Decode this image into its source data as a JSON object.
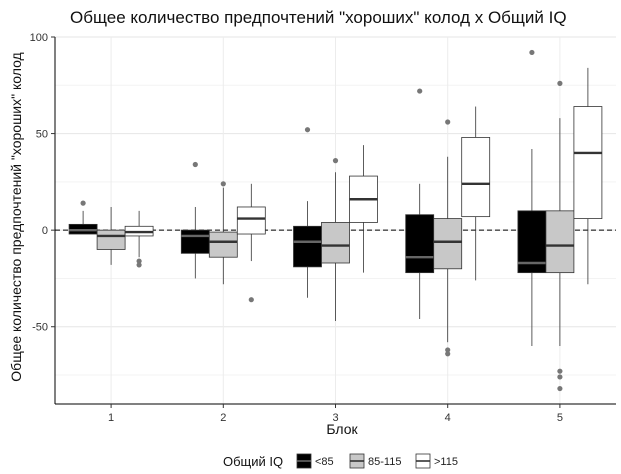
{
  "chart_data": {
    "type": "boxplot",
    "title": "Общее количество предпочтений \"хороших\" колод х Общий IQ",
    "xlabel": "Блок",
    "ylabel": "Общее количество предпочтений \"хороших\" колод",
    "categories": [
      "1",
      "2",
      "3",
      "4",
      "5"
    ],
    "ylim": [
      -90,
      100
    ],
    "yticks": [
      -50,
      0,
      50,
      100
    ],
    "reference_line": {
      "y": 0,
      "style": "dashed"
    },
    "grid": true,
    "legend": {
      "title": "Общий IQ",
      "placement": "bottom",
      "entries": [
        "<85",
        "85-115",
        ">115"
      ]
    },
    "series": [
      {
        "name": "<85",
        "color": "#000000",
        "median_color": "#666666",
        "boxes": [
          {
            "whisker_low": -2,
            "q1": -2,
            "median": 0,
            "q3": 3,
            "whisker_high": 10,
            "outliers": [
              14
            ]
          },
          {
            "whisker_low": -25,
            "q1": -12,
            "median": -3,
            "q3": 0,
            "whisker_high": 12,
            "outliers": [
              34
            ]
          },
          {
            "whisker_low": -35,
            "q1": -19,
            "median": -6,
            "q3": 2,
            "whisker_high": 15,
            "outliers": [
              52
            ]
          },
          {
            "whisker_low": -46,
            "q1": -22,
            "median": -14,
            "q3": 8,
            "whisker_high": 24,
            "outliers": [
              72
            ]
          },
          {
            "whisker_low": -60,
            "q1": -22,
            "median": -17,
            "q3": 10,
            "whisker_high": 42,
            "outliers": [
              92
            ]
          }
        ]
      },
      {
        "name": "85-115",
        "color": "#c8c8c8",
        "median_color": "#333333",
        "boxes": [
          {
            "whisker_low": -18,
            "q1": -10,
            "median": -3,
            "q3": 0,
            "whisker_high": 12,
            "outliers": []
          },
          {
            "whisker_low": -28,
            "q1": -14,
            "median": -6,
            "q3": -1,
            "whisker_high": 22,
            "outliers": [
              24
            ]
          },
          {
            "whisker_low": -47,
            "q1": -17,
            "median": -8,
            "q3": 4,
            "whisker_high": 30,
            "outliers": [
              36
            ]
          },
          {
            "whisker_low": -58,
            "q1": -20,
            "median": -6,
            "q3": 6,
            "whisker_high": 38,
            "outliers": [
              56,
              -62,
              -64
            ]
          },
          {
            "whisker_low": -60,
            "q1": -22,
            "median": -8,
            "q3": 10,
            "whisker_high": 58,
            "outliers": [
              76,
              -73,
              -76,
              -82
            ]
          }
        ]
      },
      {
        "name": ">115",
        "color": "#ffffff",
        "median_color": "#333333",
        "boxes": [
          {
            "whisker_low": -14,
            "q1": -3,
            "median": -1,
            "q3": 2,
            "whisker_high": 10,
            "outliers": [
              -16,
              -18
            ]
          },
          {
            "whisker_low": -16,
            "q1": -2,
            "median": 6,
            "q3": 12,
            "whisker_high": 24,
            "outliers": [
              -36
            ]
          },
          {
            "whisker_low": -22,
            "q1": 4,
            "median": 16,
            "q3": 28,
            "whisker_high": 44,
            "outliers": []
          },
          {
            "whisker_low": -26,
            "q1": 7,
            "median": 24,
            "q3": 48,
            "whisker_high": 64,
            "outliers": []
          },
          {
            "whisker_low": -28,
            "q1": 6,
            "median": 40,
            "q3": 64,
            "whisker_high": 84,
            "outliers": []
          }
        ]
      }
    ]
  }
}
